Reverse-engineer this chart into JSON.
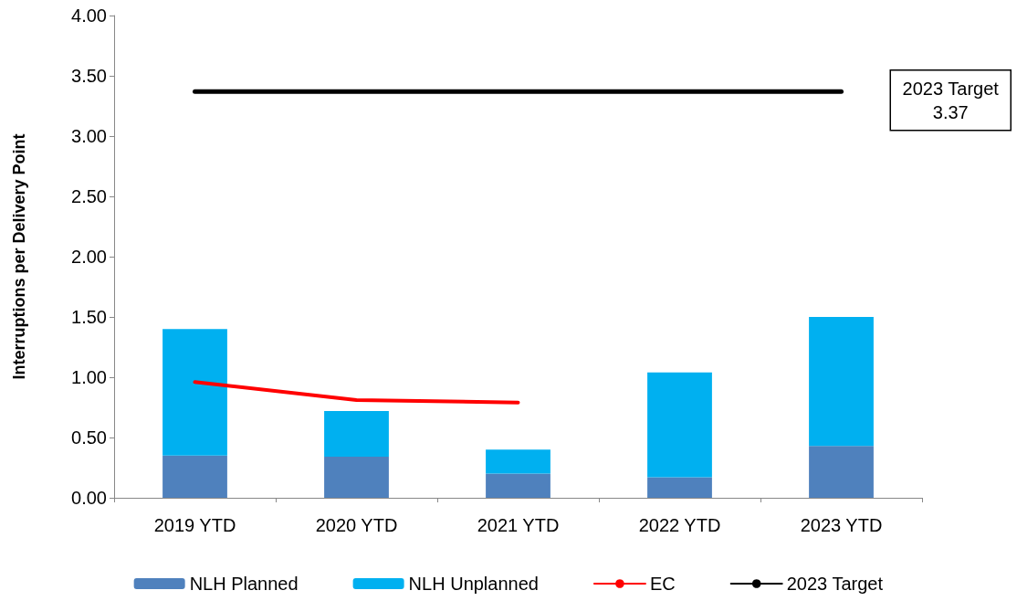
{
  "chart_data": {
    "type": "bar",
    "ylabel": "Interruptions per Delivery Point",
    "categories": [
      "2019 YTD",
      "2020 YTD",
      "2021 YTD",
      "2022 YTD",
      "2023 YTD"
    ],
    "stacked": true,
    "series": [
      {
        "name": "NLH Planned",
        "color": "#4f81bd",
        "values": [
          0.35,
          0.34,
          0.2,
          0.17,
          0.43
        ]
      },
      {
        "name": "NLH Unplanned",
        "color": "#00b0f0",
        "values": [
          1.05,
          0.38,
          0.2,
          0.87,
          1.07
        ]
      },
      {
        "name": "EC",
        "type": "line",
        "color": "#ff0000",
        "values": [
          0.96,
          0.81,
          0.79,
          null,
          null
        ]
      },
      {
        "name": "2023 Target",
        "type": "line",
        "color": "#000000",
        "values": [
          3.37,
          3.37,
          3.37,
          3.37,
          3.37
        ]
      }
    ],
    "ylim": [
      0,
      4
    ],
    "yticks": [
      {
        "value": 0,
        "label": "0.00"
      },
      {
        "value": 0.5,
        "label": "0.50"
      },
      {
        "value": 1,
        "label": "1.00"
      },
      {
        "value": 1.5,
        "label": "1.50"
      },
      {
        "value": 2,
        "label": "2.00"
      },
      {
        "value": 2.5,
        "label": "2.50"
      },
      {
        "value": 3,
        "label": "3.00"
      },
      {
        "value": 3.5,
        "label": "3.50"
      },
      {
        "value": 4,
        "label": "4.00"
      }
    ],
    "annotations": [
      "2023 Target\n3.37"
    ],
    "grid": false,
    "legend": "bottom",
    "marker": "none",
    "line_style": "solid"
  }
}
